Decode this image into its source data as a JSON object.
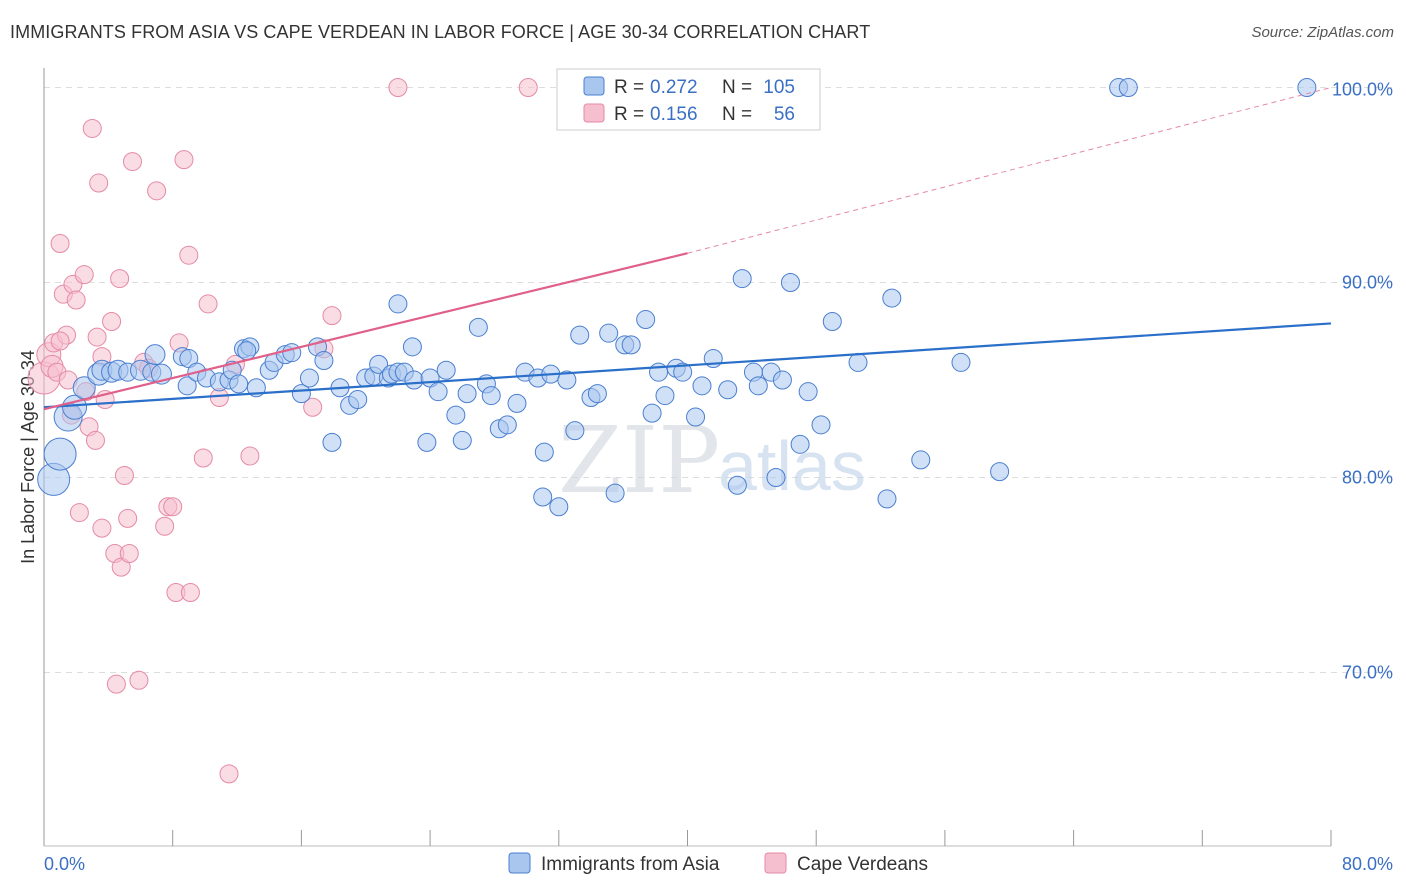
{
  "title": "IMMIGRANTS FROM ASIA VS CAPE VERDEAN IN LABOR FORCE | AGE 30-34 CORRELATION CHART",
  "source": "Source: ZipAtlas.com",
  "watermark": {
    "part1": "ZIP",
    "part2": "atlas"
  },
  "colors": {
    "blue": "#4a7fd0",
    "blue_fill": "#a9c6ee",
    "blue_line": "#2a6fc9",
    "pink": "#e58aa6",
    "pink_fill": "#f6bfd0",
    "pink_line": "#e0608a",
    "grid": "#dddddd",
    "axis_text": "#3a6fc4"
  },
  "legend": {
    "series1": {
      "r_label": "R =",
      "r_value": "0.272",
      "n_label": "N =",
      "n_value": "105"
    },
    "series2": {
      "r_label": "R =",
      "r_value": "0.156",
      "n_label": "N =",
      "n_value": "56"
    }
  },
  "chart_data": {
    "type": "scatter",
    "title": "IMMIGRANTS FROM ASIA VS CAPE VERDEAN IN LABOR FORCE | AGE 30-34 CORRELATION CHART",
    "xlabel": "",
    "ylabel": "In Labor Force | Age 30-34",
    "xlim": [
      0,
      80
    ],
    "ylim": [
      61.1,
      101.0
    ],
    "x_tick_labels": {
      "left": "0.0%",
      "right": "80.0%"
    },
    "y_ticks": [
      {
        "value": 100,
        "label": "100.0%"
      },
      {
        "value": 90,
        "label": "90.0%"
      },
      {
        "value": 80,
        "label": "80.0%"
      },
      {
        "value": 70,
        "label": "70.0%"
      }
    ],
    "grid": true,
    "series": [
      {
        "name": "Immigrants from Asia",
        "color": "#4a7fd0",
        "trend": {
          "x0": 0,
          "y0": 83.6,
          "x1": 80,
          "y1": 87.9,
          "dashed_to": null
        },
        "points": [
          [
            0.6,
            79.9,
            16
          ],
          [
            1.0,
            81.2,
            16
          ],
          [
            1.5,
            83.1,
            14
          ],
          [
            1.9,
            83.6,
            12
          ],
          [
            2.5,
            84.6,
            11
          ],
          [
            3.4,
            85.3,
            11
          ],
          [
            3.6,
            85.5,
            10
          ],
          [
            4.2,
            85.4,
            10
          ],
          [
            4.6,
            85.5,
            10
          ],
          [
            5.2,
            85.4,
            9
          ],
          [
            6.0,
            85.5,
            10
          ],
          [
            6.7,
            85.4,
            9
          ],
          [
            6.9,
            86.3,
            10
          ],
          [
            7.3,
            85.3,
            10
          ],
          [
            8.6,
            86.2,
            9
          ],
          [
            8.9,
            84.7,
            9
          ],
          [
            9.0,
            86.1,
            9
          ],
          [
            9.5,
            85.4,
            9
          ],
          [
            10.1,
            85.1,
            9
          ],
          [
            10.9,
            84.9,
            9
          ],
          [
            11.5,
            85.0,
            9
          ],
          [
            11.7,
            85.5,
            9
          ],
          [
            12.1,
            84.8,
            9
          ],
          [
            12.4,
            86.6,
            9
          ],
          [
            12.8,
            86.7,
            9
          ],
          [
            12.6,
            86.5,
            9
          ],
          [
            13.2,
            84.6,
            9
          ],
          [
            14.0,
            85.5,
            9
          ],
          [
            14.3,
            85.9,
            9
          ],
          [
            15.0,
            86.3,
            9
          ],
          [
            15.4,
            86.4,
            9
          ],
          [
            16.0,
            84.3,
            9
          ],
          [
            16.5,
            85.1,
            9
          ],
          [
            17.0,
            86.7,
            9
          ],
          [
            17.4,
            86.0,
            9
          ],
          [
            17.9,
            81.8,
            9
          ],
          [
            18.4,
            84.6,
            9
          ],
          [
            19.0,
            83.7,
            9
          ],
          [
            19.5,
            84.0,
            9
          ],
          [
            20.0,
            85.1,
            9
          ],
          [
            20.5,
            85.2,
            9
          ],
          [
            20.8,
            85.8,
            9
          ],
          [
            21.4,
            85.1,
            9
          ],
          [
            21.6,
            85.3,
            9
          ],
          [
            22.0,
            85.4,
            9
          ],
          [
            22.4,
            85.4,
            9
          ],
          [
            22.0,
            88.9,
            9
          ],
          [
            22.9,
            86.7,
            9
          ],
          [
            23.0,
            85.0,
            9
          ],
          [
            23.8,
            81.8,
            9
          ],
          [
            24.0,
            85.1,
            9
          ],
          [
            24.5,
            84.4,
            9
          ],
          [
            25.0,
            85.5,
            9
          ],
          [
            25.6,
            83.2,
            9
          ],
          [
            26.0,
            81.9,
            9
          ],
          [
            26.3,
            84.3,
            9
          ],
          [
            27.0,
            87.7,
            9
          ],
          [
            27.5,
            84.8,
            9
          ],
          [
            27.8,
            84.2,
            9
          ],
          [
            28.3,
            82.5,
            9
          ],
          [
            28.8,
            82.7,
            9
          ],
          [
            29.4,
            83.8,
            9
          ],
          [
            29.9,
            85.4,
            9
          ],
          [
            30.7,
            85.1,
            9
          ],
          [
            31.1,
            81.3,
            9
          ],
          [
            31.5,
            85.3,
            9
          ],
          [
            31.0,
            79.0,
            9
          ],
          [
            32.0,
            78.5,
            9
          ],
          [
            32.5,
            85.0,
            9
          ],
          [
            33.0,
            82.4,
            9
          ],
          [
            33.3,
            87.3,
            9
          ],
          [
            34.0,
            84.1,
            9
          ],
          [
            34.4,
            84.3,
            9
          ],
          [
            35.1,
            87.4,
            9
          ],
          [
            35.5,
            79.2,
            9
          ],
          [
            36.1,
            86.8,
            9
          ],
          [
            36.5,
            86.8,
            9
          ],
          [
            37.4,
            88.1,
            9
          ],
          [
            37.8,
            83.3,
            9
          ],
          [
            38.2,
            85.4,
            9
          ],
          [
            38.6,
            84.2,
            9
          ],
          [
            39.3,
            85.6,
            9
          ],
          [
            39.7,
            85.4,
            9
          ],
          [
            40.5,
            83.1,
            9
          ],
          [
            40.9,
            84.7,
            9
          ],
          [
            41.6,
            86.1,
            9
          ],
          [
            42.5,
            84.5,
            9
          ],
          [
            43.1,
            79.6,
            9
          ],
          [
            43.4,
            90.2,
            9
          ],
          [
            44.1,
            85.4,
            9
          ],
          [
            44.4,
            84.7,
            9
          ],
          [
            45.2,
            85.4,
            9
          ],
          [
            45.5,
            80.0,
            9
          ],
          [
            45.9,
            85.0,
            9
          ],
          [
            46.4,
            90.0,
            9
          ],
          [
            47.0,
            81.7,
            9
          ],
          [
            47.5,
            84.4,
            9
          ],
          [
            48.3,
            82.7,
            9
          ],
          [
            49.0,
            88.0,
            9
          ],
          [
            50.6,
            85.9,
            9
          ],
          [
            52.4,
            78.9,
            9
          ],
          [
            52.7,
            89.2,
            9
          ],
          [
            54.5,
            80.9,
            9
          ],
          [
            57.0,
            85.9,
            9
          ],
          [
            59.4,
            80.3,
            9
          ],
          [
            66.8,
            100.0,
            9
          ],
          [
            67.4,
            100.0,
            9
          ],
          [
            78.5,
            100.0,
            9
          ]
        ]
      },
      {
        "name": "Cape Verdeans",
        "color": "#e58aa6",
        "trend": {
          "x0": 0,
          "y0": 83.5,
          "x1": 40,
          "y1": 91.5,
          "dashed_to": {
            "x": 80,
            "y": 100.0
          }
        },
        "points": [
          [
            0.0,
            85.1,
            16
          ],
          [
            0.3,
            86.3,
            12
          ],
          [
            0.5,
            85.7,
            11
          ],
          [
            0.6,
            86.9,
            9
          ],
          [
            0.8,
            85.4,
            9
          ],
          [
            1.0,
            92.0,
            9
          ],
          [
            1.2,
            89.4,
            9
          ],
          [
            1.4,
            87.3,
            9
          ],
          [
            1.5,
            85.0,
            9
          ],
          [
            1.7,
            83.2,
            9
          ],
          [
            1.8,
            89.9,
            9
          ],
          [
            2.0,
            89.1,
            9
          ],
          [
            2.2,
            78.2,
            9
          ],
          [
            2.5,
            90.4,
            9
          ],
          [
            2.6,
            84.4,
            9
          ],
          [
            2.8,
            82.6,
            9
          ],
          [
            3.0,
            97.9,
            9
          ],
          [
            3.2,
            81.9,
            9
          ],
          [
            3.3,
            87.2,
            9
          ],
          [
            3.4,
            95.1,
            9
          ],
          [
            3.6,
            77.4,
            9
          ],
          [
            3.8,
            84.0,
            9
          ],
          [
            4.2,
            88.0,
            9
          ],
          [
            4.4,
            76.1,
            9
          ],
          [
            4.5,
            69.4,
            9
          ],
          [
            4.7,
            90.2,
            9
          ],
          [
            4.8,
            75.4,
            9
          ],
          [
            5.0,
            80.1,
            9
          ],
          [
            5.2,
            77.9,
            9
          ],
          [
            5.3,
            76.1,
            9
          ],
          [
            5.5,
            96.2,
            9
          ],
          [
            5.9,
            69.6,
            9
          ],
          [
            6.2,
            85.9,
            9
          ],
          [
            6.5,
            85.6,
            9
          ],
          [
            7.0,
            94.7,
            9
          ],
          [
            7.5,
            77.5,
            9
          ],
          [
            7.7,
            78.5,
            9
          ],
          [
            8.0,
            78.5,
            9
          ],
          [
            8.2,
            74.1,
            9
          ],
          [
            8.4,
            86.9,
            9
          ],
          [
            8.7,
            96.3,
            9
          ],
          [
            9.0,
            91.4,
            9
          ],
          [
            9.1,
            74.1,
            9
          ],
          [
            9.9,
            81.0,
            9
          ],
          [
            10.2,
            88.9,
            9
          ],
          [
            10.9,
            84.1,
            9
          ],
          [
            11.5,
            64.8,
            9
          ],
          [
            11.9,
            85.8,
            9
          ],
          [
            12.8,
            81.1,
            9
          ],
          [
            16.7,
            83.6,
            9
          ],
          [
            17.4,
            86.6,
            9
          ],
          [
            17.9,
            88.3,
            9
          ],
          [
            22.0,
            100.0,
            9
          ],
          [
            30.1,
            100.0,
            9
          ],
          [
            1.0,
            87.0,
            9
          ],
          [
            3.6,
            86.2,
            9
          ]
        ]
      }
    ],
    "legend_bottom": [
      "Immigrants from Asia",
      "Cape Verdeans"
    ]
  }
}
